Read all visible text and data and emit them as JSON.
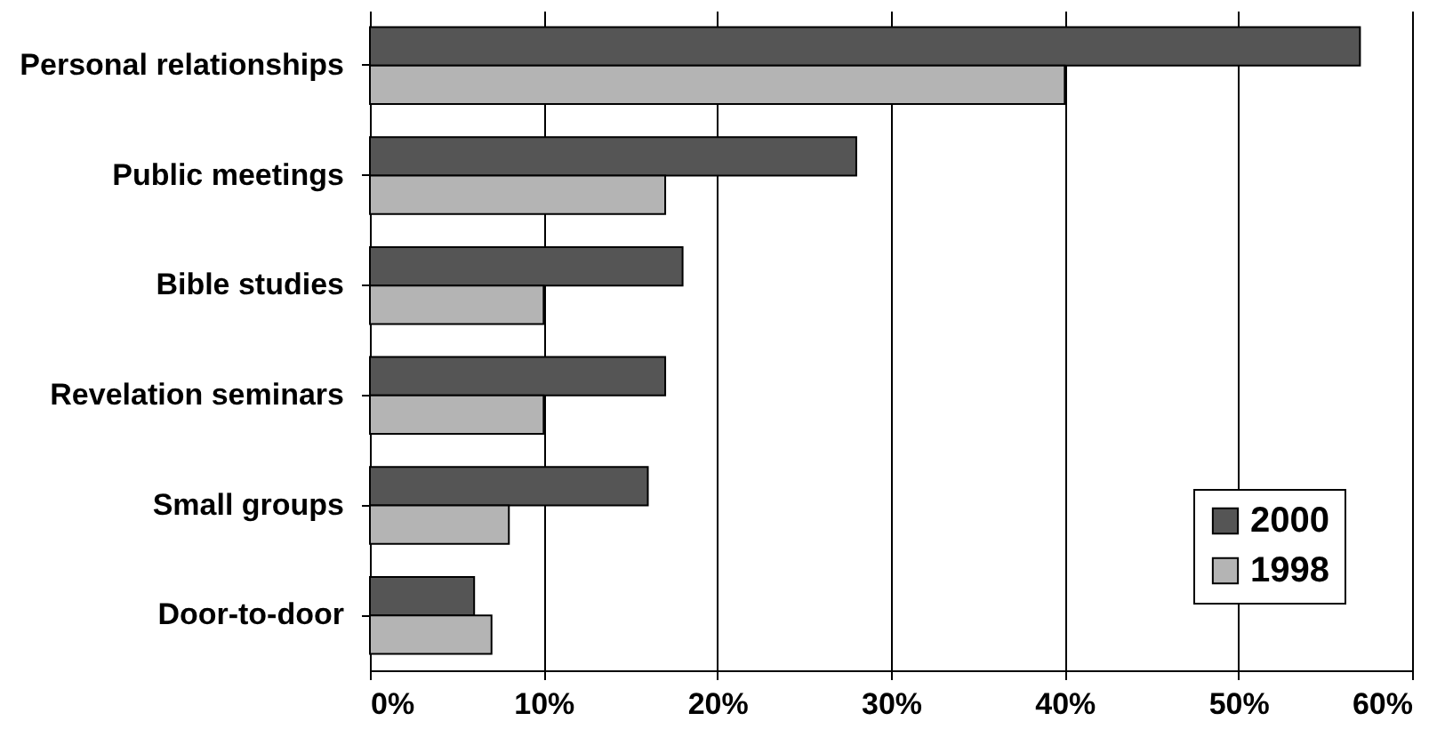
{
  "chart_data": {
    "type": "bar",
    "orientation": "horizontal",
    "categories": [
      "Personal relationships",
      "Public meetings",
      "Bible studies",
      "Revelation seminars",
      "Small groups",
      "Door-to-door"
    ],
    "series": [
      {
        "name": "2000",
        "color": "#555555",
        "values": [
          57,
          28,
          18,
          17,
          16,
          6
        ]
      },
      {
        "name": "1998",
        "color": "#b4b4b4",
        "values": [
          40,
          17,
          10,
          10,
          8,
          7
        ]
      }
    ],
    "xlim": [
      0,
      60
    ],
    "xticks": [
      {
        "value": 0,
        "label": "0%"
      },
      {
        "value": 10,
        "label": "10%"
      },
      {
        "value": 20,
        "label": "20%"
      },
      {
        "value": 30,
        "label": "30%"
      },
      {
        "value": 40,
        "label": "40%"
      },
      {
        "value": 50,
        "label": "50%"
      },
      {
        "value": 60,
        "label": "60%"
      }
    ],
    "grid": "x",
    "legend": "bottom right"
  }
}
